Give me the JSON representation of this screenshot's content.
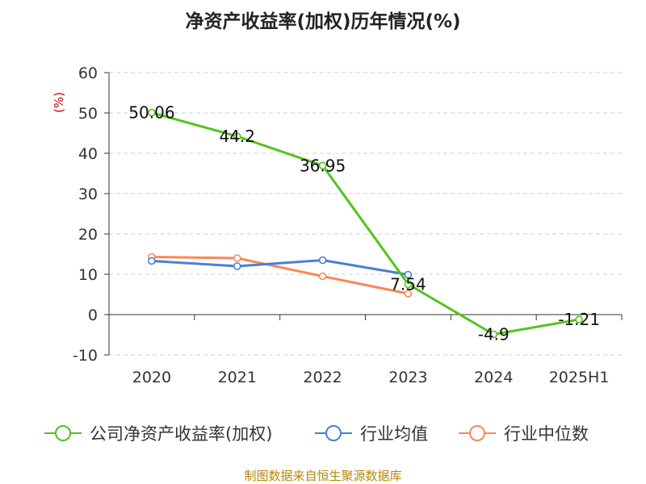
{
  "chart_data": {
    "type": "line",
    "title": "净资产收益率(加权)历年情况(%)",
    "ylabel": "(%)",
    "xlabel": "",
    "categories": [
      "2020",
      "2021",
      "2022",
      "2023",
      "2024",
      "2025H1"
    ],
    "ylim": [
      -10,
      60
    ],
    "yticks": [
      -10,
      0,
      10,
      20,
      30,
      40,
      50,
      60
    ],
    "grid": true,
    "legend_position": "bottom",
    "series": [
      {
        "name": "公司净资产收益率(加权)",
        "color": "#52c41a",
        "values": [
          50.06,
          44.2,
          36.95,
          7.54,
          -4.9,
          -1.21
        ],
        "labels": [
          "50.06",
          "44.2",
          "36.95",
          "7.54",
          "-4.9",
          "-1.21"
        ]
      },
      {
        "name": "行业均值",
        "color": "#4a7fd6",
        "values": [
          13.3,
          12.0,
          13.5,
          9.9,
          null,
          null
        ]
      },
      {
        "name": "行业中位数",
        "color": "#f5895a",
        "values": [
          14.3,
          14.0,
          9.5,
          5.2,
          null,
          null
        ]
      }
    ]
  },
  "footer": {
    "source": "制图数据来自恒生聚源数据库"
  }
}
